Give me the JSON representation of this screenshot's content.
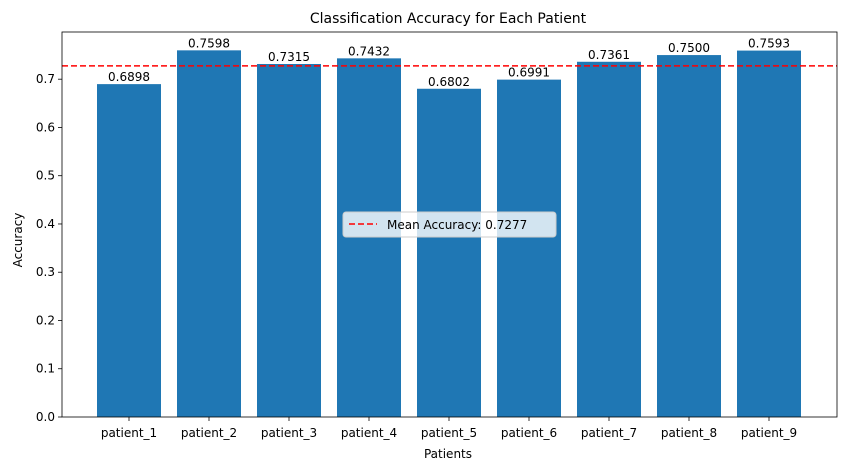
{
  "chart_data": {
    "type": "bar",
    "title": "Classification Accuracy for Each Patient",
    "xlabel": "Patients",
    "ylabel": "Accuracy",
    "categories": [
      "patient_1",
      "patient_2",
      "patient_3",
      "patient_4",
      "patient_5",
      "patient_6",
      "patient_7",
      "patient_8",
      "patient_9"
    ],
    "values": [
      0.6898,
      0.7598,
      0.7315,
      0.7432,
      0.6802,
      0.6991,
      0.7361,
      0.75,
      0.7593
    ],
    "data_labels": [
      "0.6898",
      "0.7598",
      "0.7315",
      "0.7432",
      "0.6802",
      "0.6991",
      "0.7361",
      "0.7500",
      "0.7593"
    ],
    "yticks": [
      0.0,
      0.1,
      0.2,
      0.3,
      0.4,
      0.5,
      0.6,
      0.7
    ],
    "ytick_labels": [
      "0.0",
      "0.1",
      "0.2",
      "0.3",
      "0.4",
      "0.5",
      "0.6",
      "0.7"
    ],
    "ylim": [
      0,
      0.7978
    ],
    "mean_line": {
      "value": 0.7277,
      "label": "Mean Accuracy: 0.7277",
      "color": "#ff0000",
      "style": "dashed"
    },
    "bar_color": "#1f77b4",
    "grid": false,
    "legend": {
      "placement": "center",
      "entries": [
        "Mean Accuracy: 0.7277"
      ]
    }
  }
}
